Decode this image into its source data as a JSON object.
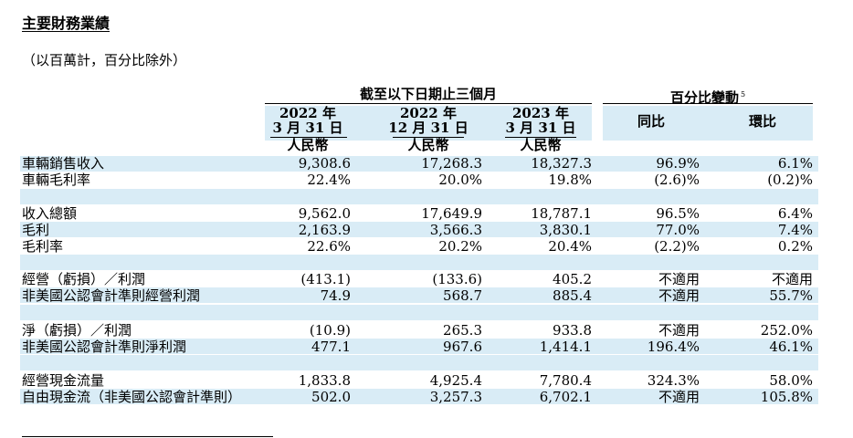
{
  "title": "主要財務業績",
  "subtitle": "（以百萬計，百分比除外）",
  "header": {
    "group_period": "截至以下日期止三個月",
    "group_change": "百分比變動",
    "footnote_mark": "5",
    "periods": [
      {
        "year": "2022 年",
        "date": "3 月 31 日",
        "currency": "人民幣"
      },
      {
        "year": "2022 年",
        "date": "12 月 31 日",
        "currency": "人民幣"
      },
      {
        "year": "2023 年",
        "date": "3 月 31 日",
        "currency": "人民幣"
      }
    ],
    "yoy": "同比",
    "qoq": "環比"
  },
  "rows": [
    {
      "label": "車輛銷售收入",
      "v1": "9,308.6",
      "v2": "17,268.3",
      "v3": "18,327.3",
      "yoy": "96.9%",
      "qoq": "6.1%"
    },
    {
      "label": "車輛毛利率",
      "v1": "22.4%",
      "v2": "20.0%",
      "v3": "19.8%",
      "yoy": "(2.6)%",
      "qoq": "(0.2)%"
    },
    {
      "label": "收入總額",
      "v1": "9,562.0",
      "v2": "17,649.9",
      "v3": "18,787.1",
      "yoy": "96.5%",
      "qoq": "6.4%"
    },
    {
      "label": "毛利",
      "v1": "2,163.9",
      "v2": "3,566.3",
      "v3": "3,830.1",
      "yoy": "77.0%",
      "qoq": "7.4%"
    },
    {
      "label": "毛利率",
      "v1": "22.6%",
      "v2": "20.2%",
      "v3": "20.4%",
      "yoy": "(2.2)%",
      "qoq": "0.2%"
    },
    {
      "label": "經營（虧損）／利潤",
      "v1": "(413.1)",
      "v2": "(133.6)",
      "v3": "405.2",
      "yoy": "不適用",
      "qoq": "不適用"
    },
    {
      "label": "非美國公認會計準則經營利潤",
      "v1": "74.9",
      "v2": "568.7",
      "v3": "885.4",
      "yoy": "不適用",
      "qoq": "55.7%"
    },
    {
      "label": "淨（虧損）／利潤",
      "v1": "(10.9)",
      "v2": "265.3",
      "v3": "933.8",
      "yoy": "不適用",
      "qoq": "252.0%"
    },
    {
      "label": "非美國公認會計準則淨利潤",
      "v1": "477.1",
      "v2": "967.6",
      "v3": "1,414.1",
      "yoy": "196.4%",
      "qoq": "46.1%"
    },
    {
      "label": "經營現金流量",
      "v1": "1,833.8",
      "v2": "4,925.4",
      "v3": "7,780.4",
      "yoy": "324.3%",
      "qoq": "58.0%"
    },
    {
      "label": "自由現金流（非美國公認會計準則）",
      "v1": "502.0",
      "v2": "3,257.3",
      "v3": "6,702.1",
      "yoy": "不適用",
      "qoq": "105.8%"
    }
  ],
  "colors": {
    "band": "#d9ecf6",
    "text": "#000000"
  }
}
